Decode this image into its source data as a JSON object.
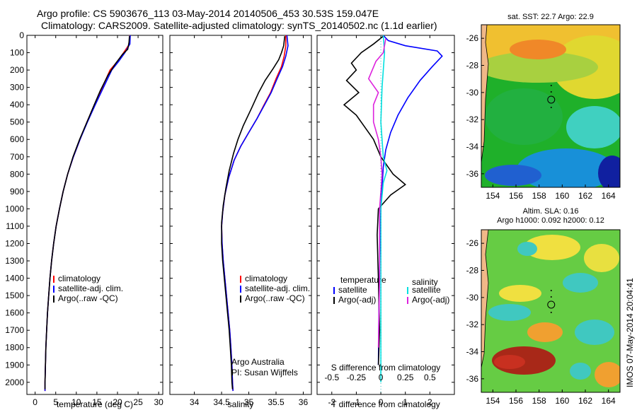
{
  "title_line1": "Argo profile: CS 5903676_113 03-May-2014 20140506_453 30.53S 159.047E",
  "title_line2": "Climatology: CARS2009. Satellite-adjusted climatology: synTS_20140502.nc (1.1d earlier)",
  "side_text": "IMOS 07-May-2014 20:04:41",
  "chart_data": [
    {
      "type": "line",
      "id": "temperature",
      "xlabel": "temperature (deg C)",
      "ylabel": "",
      "xlim": [
        -2,
        31
      ],
      "ylim": [
        2070,
        0
      ],
      "xticks": [
        0,
        5,
        10,
        15,
        20,
        25,
        30
      ],
      "yticks": [
        0,
        100,
        200,
        300,
        400,
        500,
        600,
        700,
        800,
        900,
        1000,
        1100,
        1200,
        1300,
        1400,
        1500,
        1600,
        1700,
        1800,
        1900,
        2000
      ],
      "legend": [
        "climatology",
        "satellite-adj. clim.",
        "Argo(..raw -QC)"
      ],
      "legend_position": "lower-middle",
      "series": [
        {
          "name": "climatology",
          "color": "#ff0000",
          "points": [
            [
              23.0,
              0
            ],
            [
              22.9,
              50
            ],
            [
              21.5,
              100
            ],
            [
              20.0,
              150
            ],
            [
              18.2,
              200
            ],
            [
              16.3,
              300
            ],
            [
              14.4,
              400
            ],
            [
              12.6,
              500
            ],
            [
              10.9,
              600
            ],
            [
              9.3,
              700
            ],
            [
              7.9,
              800
            ],
            [
              6.8,
              900
            ],
            [
              5.9,
              1000
            ],
            [
              5.1,
              1100
            ],
            [
              4.5,
              1200
            ],
            [
              4.0,
              1300
            ],
            [
              3.6,
              1400
            ],
            [
              3.3,
              1500
            ],
            [
              3.0,
              1600
            ],
            [
              2.8,
              1700
            ],
            [
              2.6,
              1800
            ],
            [
              2.5,
              1900
            ],
            [
              2.4,
              2000
            ],
            [
              2.4,
              2050
            ]
          ]
        },
        {
          "name": "satellite-adj. clim.",
          "color": "#0000ff",
          "points": [
            [
              23.1,
              0
            ],
            [
              23.0,
              50
            ],
            [
              21.8,
              100
            ],
            [
              20.3,
              150
            ],
            [
              18.6,
              200
            ],
            [
              16.6,
              300
            ],
            [
              14.6,
              400
            ],
            [
              12.7,
              500
            ],
            [
              10.9,
              600
            ],
            [
              9.3,
              700
            ],
            [
              7.9,
              800
            ],
            [
              6.8,
              900
            ],
            [
              5.9,
              1000
            ],
            [
              5.1,
              1100
            ],
            [
              4.5,
              1200
            ],
            [
              4.0,
              1300
            ],
            [
              3.6,
              1400
            ],
            [
              3.3,
              1500
            ],
            [
              3.0,
              1600
            ],
            [
              2.8,
              1700
            ],
            [
              2.6,
              1800
            ],
            [
              2.5,
              1900
            ],
            [
              2.4,
              2000
            ],
            [
              2.4,
              2050
            ]
          ]
        },
        {
          "name": "Argo(..raw -QC)",
          "color": "#000000",
          "points": [
            [
              22.9,
              5
            ],
            [
              22.8,
              40
            ],
            [
              22.5,
              80
            ],
            [
              21.2,
              110
            ],
            [
              19.6,
              160
            ],
            [
              17.7,
              230
            ],
            [
              15.8,
              320
            ],
            [
              14.0,
              420
            ],
            [
              12.4,
              510
            ],
            [
              10.8,
              600
            ],
            [
              9.2,
              700
            ],
            [
              7.9,
              800
            ],
            [
              6.8,
              900
            ],
            [
              5.9,
              1000
            ],
            [
              5.1,
              1100
            ],
            [
              4.5,
              1200
            ],
            [
              4.0,
              1300
            ],
            [
              3.6,
              1400
            ],
            [
              3.3,
              1500
            ],
            [
              3.0,
              1600
            ],
            [
              2.8,
              1700
            ],
            [
              2.6,
              1800
            ],
            [
              2.5,
              1900
            ],
            [
              2.4,
              2000
            ],
            [
              2.4,
              2040
            ]
          ]
        }
      ]
    },
    {
      "type": "line",
      "id": "salinity",
      "xlabel": "salinity",
      "ylabel": "",
      "xlim": [
        33.55,
        36.15
      ],
      "ylim": [
        2070,
        0
      ],
      "xticks": [
        34,
        34.5,
        35,
        35.5,
        36
      ],
      "xtick_labels": [
        "34",
        "34.5",
        "35",
        "35.5",
        "36"
      ],
      "legend": [
        "climatology",
        "satellite-adj. clim.",
        "Argo(..raw -QC)"
      ],
      "legend_position": "lower-right",
      "annotation": [
        "Argo Australia",
        "PI: Susan Wijffels"
      ],
      "series": [
        {
          "name": "climatology",
          "color": "#ff0000",
          "points": [
            [
              35.68,
              0
            ],
            [
              35.68,
              60
            ],
            [
              35.65,
              120
            ],
            [
              35.6,
              180
            ],
            [
              35.5,
              250
            ],
            [
              35.4,
              330
            ],
            [
              35.28,
              400
            ],
            [
              35.15,
              480
            ],
            [
              35.0,
              560
            ],
            [
              34.85,
              640
            ],
            [
              34.73,
              720
            ],
            [
              34.63,
              820
            ],
            [
              34.56,
              920
            ],
            [
              34.52,
              1020
            ],
            [
              34.5,
              1100
            ],
            [
              34.51,
              1200
            ],
            [
              34.53,
              1300
            ],
            [
              34.56,
              1400
            ],
            [
              34.59,
              1500
            ],
            [
              34.62,
              1600
            ],
            [
              34.65,
              1700
            ],
            [
              34.67,
              1800
            ],
            [
              34.69,
              1900
            ],
            [
              34.7,
              2000
            ],
            [
              34.71,
              2050
            ]
          ]
        },
        {
          "name": "satellite-adj. clim.",
          "color": "#0000ff",
          "points": [
            [
              35.7,
              0
            ],
            [
              35.72,
              60
            ],
            [
              35.68,
              120
            ],
            [
              35.62,
              180
            ],
            [
              35.52,
              250
            ],
            [
              35.41,
              330
            ],
            [
              35.29,
              400
            ],
            [
              35.15,
              480
            ],
            [
              35.0,
              560
            ],
            [
              34.85,
              640
            ],
            [
              34.73,
              720
            ],
            [
              34.63,
              820
            ],
            [
              34.56,
              920
            ],
            [
              34.52,
              1020
            ],
            [
              34.5,
              1100
            ],
            [
              34.51,
              1200
            ],
            [
              34.53,
              1300
            ],
            [
              34.56,
              1400
            ],
            [
              34.59,
              1500
            ],
            [
              34.62,
              1600
            ],
            [
              34.65,
              1700
            ],
            [
              34.67,
              1800
            ],
            [
              34.69,
              1900
            ],
            [
              34.7,
              2000
            ],
            [
              34.71,
              2050
            ]
          ]
        },
        {
          "name": "Argo(..raw -QC)",
          "color": "#000000",
          "points": [
            [
              35.66,
              5
            ],
            [
              35.64,
              60
            ],
            [
              35.6,
              100
            ],
            [
              35.55,
              140
            ],
            [
              35.45,
              190
            ],
            [
              35.3,
              260
            ],
            [
              35.18,
              330
            ],
            [
              35.05,
              420
            ],
            [
              34.9,
              520
            ],
            [
              34.8,
              600
            ],
            [
              34.72,
              680
            ],
            [
              34.64,
              780
            ],
            [
              34.58,
              880
            ],
            [
              34.53,
              980
            ],
            [
              34.5,
              1080
            ],
            [
              34.5,
              1200
            ],
            [
              34.52,
              1300
            ],
            [
              34.55,
              1400
            ],
            [
              34.58,
              1500
            ],
            [
              34.61,
              1600
            ],
            [
              34.64,
              1700
            ],
            [
              34.66,
              1800
            ],
            [
              34.68,
              1900
            ],
            [
              34.69,
              2000
            ],
            [
              34.7,
              2040
            ]
          ]
        }
      ]
    },
    {
      "type": "line",
      "id": "difference",
      "xlabel": "T difference from climatology",
      "xlabel_top": "S difference from climatology",
      "xlim": [
        -2.6,
        3.0
      ],
      "ylim": [
        2070,
        0
      ],
      "xticks": [
        -2,
        -1,
        0,
        1,
        2
      ],
      "xtick_labels": [
        "-2",
        "-1",
        "0",
        "1",
        "2"
      ],
      "sticks": [
        -0.5,
        -0.25,
        0,
        0.25,
        0.5
      ],
      "stick_labels": [
        "-0.5",
        "-0.25",
        "0",
        "0.25",
        "0.5"
      ],
      "legend": [
        "temperature",
        "satellite",
        "Argo(-adj)",
        "salinity",
        "satellite",
        "Argo(-adj)"
      ],
      "legend_position": "lower-middle",
      "series": [
        {
          "name": "temperature satellite",
          "color": "#0000ff",
          "points": [
            [
              0.1,
              0
            ],
            [
              0.3,
              30
            ],
            [
              1.0,
              60
            ],
            [
              2.3,
              90
            ],
            [
              2.5,
              120
            ],
            [
              2.1,
              180
            ],
            [
              1.6,
              260
            ],
            [
              1.1,
              360
            ],
            [
              0.7,
              460
            ],
            [
              0.4,
              560
            ],
            [
              0.2,
              660
            ],
            [
              0.1,
              760
            ],
            [
              0.0,
              1000
            ],
            [
              -0.05,
              1300
            ],
            [
              -0.08,
              1600
            ],
            [
              -0.1,
              1900
            ]
          ]
        },
        {
          "name": "temperature Argo(-adj)",
          "color": "#000000",
          "points": [
            [
              0.1,
              5
            ],
            [
              -0.3,
              50
            ],
            [
              -0.8,
              100
            ],
            [
              -1.2,
              160
            ],
            [
              -1.0,
              200
            ],
            [
              -1.4,
              260
            ],
            [
              -0.9,
              330
            ],
            [
              -1.5,
              400
            ],
            [
              -1.0,
              460
            ],
            [
              -0.7,
              520
            ],
            [
              -0.3,
              600
            ],
            [
              0.0,
              700
            ],
            [
              0.5,
              800
            ],
            [
              1.0,
              860
            ],
            [
              0.4,
              920
            ],
            [
              -0.1,
              1000
            ],
            [
              -0.15,
              1150
            ],
            [
              -0.1,
              1400
            ],
            [
              -0.05,
              1700
            ],
            [
              -0.1,
              1900
            ]
          ]
        },
        {
          "name": "salinity satellite",
          "color": "#00e0e0",
          "points": [
            [
              0.1,
              0
            ],
            [
              0.15,
              100
            ],
            [
              0.05,
              300
            ],
            [
              0.0,
              500
            ],
            [
              0.1,
              700
            ],
            [
              0.25,
              780
            ],
            [
              0.1,
              850
            ],
            [
              0.0,
              1000
            ],
            [
              0.0,
              1400
            ],
            [
              0.0,
              1800
            ],
            [
              0.0,
              2000
            ]
          ]
        },
        {
          "name": "salinity Argo(-adj)",
          "color": "#dd22dd",
          "points": [
            [
              0.2,
              20
            ],
            [
              0.1,
              100
            ],
            [
              -0.2,
              150
            ],
            [
              -0.5,
              250
            ],
            [
              -0.1,
              330
            ],
            [
              -0.3,
              400
            ],
            [
              -0.3,
              500
            ],
            [
              -0.1,
              600
            ],
            [
              0.0,
              700
            ],
            [
              0.05,
              800
            ],
            [
              0.0,
              900
            ],
            [
              -0.05,
              1000
            ],
            [
              -0.05,
              1400
            ],
            [
              -0.1,
              1800
            ]
          ]
        }
      ]
    }
  ],
  "maps": [
    {
      "id": "sst",
      "title": "sat. SST: 22.7 Argo: 22.9",
      "xticks": [
        154,
        156,
        158,
        160,
        162,
        164
      ],
      "yticks": [
        -26,
        -28,
        -30,
        -32,
        -34,
        -36
      ],
      "xlim": [
        153,
        165
      ],
      "ylim": [
        -37,
        -25
      ],
      "marker": [
        159.047,
        -30.53
      ]
    },
    {
      "id": "sla",
      "title1": "Altim. SLA: 0.16",
      "title2": "Argo h1000: 0.092 h2000: 0.12",
      "xticks": [
        154,
        156,
        158,
        160,
        162,
        164
      ],
      "yticks": [
        -26,
        -28,
        -30,
        -32,
        -34,
        -36
      ],
      "xlim": [
        153,
        165
      ],
      "ylim": [
        -37,
        -25
      ],
      "marker": [
        159.047,
        -30.53
      ]
    }
  ]
}
